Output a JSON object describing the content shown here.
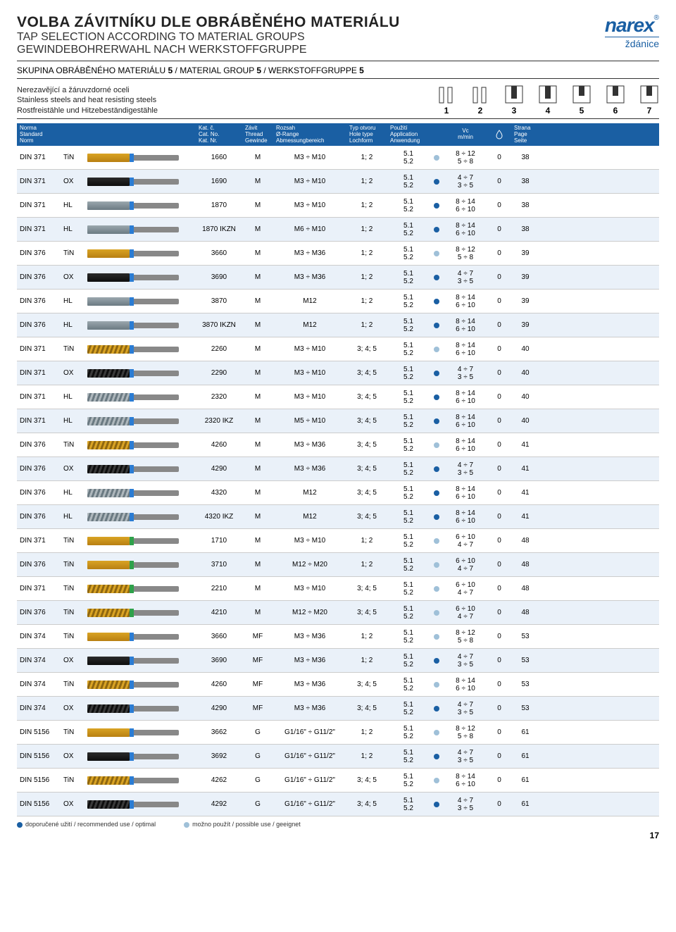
{
  "colors": {
    "brand": "#1a5fa3",
    "row_alt_bg": "#eaf1f9",
    "dot_recommended": "#1a5fa3",
    "dot_possible": "#9fc0d8",
    "ring_blue": "#2b7cd3",
    "ring_green": "#2fa14a",
    "flute_gold": "#d9a324",
    "flute_dark": "#1a1a1a",
    "flute_steel": "#8a969c"
  },
  "header": {
    "title_cz": "VOLBA ZÁVITNÍKU DLE OBRÁBĚNÉHO MATERIÁLU",
    "title_en": "TAP SELECTION ACCORDING TO MATERIAL GROUPS",
    "title_de": "GEWINDEBOHRERWAHL NACH WERKSTOFFGRUPPE",
    "logo_top": "narex",
    "logo_sub": "ždánice"
  },
  "subhead": {
    "cz": "SKUPINA OBRÁBĚNÉHO MATERIÁLU",
    "num": "5",
    "sep1": " / MATERIAL GROUP ",
    "sep2": " / WERKSTOFFGRUPPE "
  },
  "material_box": {
    "line1": "Nerezavějící a žáruvzdorné oceli",
    "line2": "Stainless steels and heat resisting steels",
    "line3": "Rostfreistähle und Hitzebeständigestähle"
  },
  "hole_labels": [
    "1",
    "2",
    "3",
    "4",
    "5",
    "6",
    "7"
  ],
  "columns": {
    "norm": "Norma\nStandard\nNorm",
    "cat": "Kat. č.\nCat. No.\nKat. Nr.",
    "thread": "Závit\nThread\nGewinde",
    "range": "Rozsah\nØ-Range\nAbmessungbereich",
    "hole": "Typ otvoru\nHole type\nLochform",
    "app": "Použití\nApplication\nAnwendung",
    "vc": "Vc\nm/min",
    "page": "Strana\nPage\nSeite"
  },
  "legend": {
    "rec": "doporučené užití / recommended use / optimal",
    "pos": "možno použít / possible use / geeignet"
  },
  "page_number": "17",
  "rows": [
    {
      "norm": "DIN 371",
      "coat": "TiN",
      "flute": "gold",
      "spiral": false,
      "ring": "blue",
      "cat": "1660",
      "thr": "M",
      "range": "M3 ÷ M10",
      "hole": "1; 2",
      "app": [
        "5.1",
        "5.2"
      ],
      "dot": "pos",
      "vc": [
        "8 ÷ 12",
        "5 ÷ 8"
      ],
      "lub": "0",
      "page": "38"
    },
    {
      "norm": "DIN 371",
      "coat": "OX",
      "flute": "dark",
      "spiral": false,
      "ring": "blue",
      "cat": "1690",
      "thr": "M",
      "range": "M3 ÷ M10",
      "hole": "1; 2",
      "app": [
        "5.1",
        "5.2"
      ],
      "dot": "rec",
      "vc": [
        "4 ÷ 7",
        "3 ÷ 5"
      ],
      "lub": "0",
      "page": "38"
    },
    {
      "norm": "DIN 371",
      "coat": "HL",
      "flute": "steel",
      "spiral": false,
      "ring": "blue",
      "cat": "1870",
      "thr": "M",
      "range": "M3 ÷ M10",
      "hole": "1; 2",
      "app": [
        "5.1",
        "5.2"
      ],
      "dot": "rec",
      "vc": [
        "8 ÷ 14",
        "6 ÷ 10"
      ],
      "lub": "0",
      "page": "38"
    },
    {
      "norm": "DIN 371",
      "coat": "HL",
      "flute": "steel",
      "spiral": false,
      "ring": "blue",
      "cat": "1870 IKZN",
      "thr": "M",
      "range": "M6 ÷ M10",
      "hole": "1; 2",
      "app": [
        "5.1",
        "5.2"
      ],
      "dot": "rec",
      "vc": [
        "8 ÷ 14",
        "6 ÷ 10"
      ],
      "lub": "0",
      "page": "38"
    },
    {
      "norm": "DIN 376",
      "coat": "TiN",
      "flute": "gold",
      "spiral": false,
      "ring": "blue",
      "cat": "3660",
      "thr": "M",
      "range": "M3 ÷ M36",
      "hole": "1; 2",
      "app": [
        "5.1",
        "5.2"
      ],
      "dot": "pos",
      "vc": [
        "8 ÷ 12",
        "5 ÷ 8"
      ],
      "lub": "0",
      "page": "39"
    },
    {
      "norm": "DIN 376",
      "coat": "OX",
      "flute": "dark",
      "spiral": false,
      "ring": "blue",
      "cat": "3690",
      "thr": "M",
      "range": "M3 ÷ M36",
      "hole": "1; 2",
      "app": [
        "5.1",
        "5.2"
      ],
      "dot": "rec",
      "vc": [
        "4 ÷ 7",
        "3 ÷ 5"
      ],
      "lub": "0",
      "page": "39"
    },
    {
      "norm": "DIN 376",
      "coat": "HL",
      "flute": "steel",
      "spiral": false,
      "ring": "blue",
      "cat": "3870",
      "thr": "M",
      "range": "M12",
      "hole": "1; 2",
      "app": [
        "5.1",
        "5.2"
      ],
      "dot": "rec",
      "vc": [
        "8 ÷ 14",
        "6 ÷ 10"
      ],
      "lub": "0",
      "page": "39"
    },
    {
      "norm": "DIN 376",
      "coat": "HL",
      "flute": "steel",
      "spiral": false,
      "ring": "blue",
      "cat": "3870 IKZN",
      "thr": "M",
      "range": "M12",
      "hole": "1; 2",
      "app": [
        "5.1",
        "5.2"
      ],
      "dot": "rec",
      "vc": [
        "8 ÷ 14",
        "6 ÷ 10"
      ],
      "lub": "0",
      "page": "39"
    },
    {
      "norm": "DIN 371",
      "coat": "TiN",
      "flute": "gold",
      "spiral": true,
      "ring": "blue",
      "cat": "2260",
      "thr": "M",
      "range": "M3 ÷ M10",
      "hole": "3; 4; 5",
      "app": [
        "5.1",
        "5.2"
      ],
      "dot": "pos",
      "vc": [
        "8 ÷ 14",
        "6 ÷ 10"
      ],
      "lub": "0",
      "page": "40"
    },
    {
      "norm": "DIN 371",
      "coat": "OX",
      "flute": "dark",
      "spiral": true,
      "ring": "blue",
      "cat": "2290",
      "thr": "M",
      "range": "M3 ÷ M10",
      "hole": "3; 4; 5",
      "app": [
        "5.1",
        "5.2"
      ],
      "dot": "rec",
      "vc": [
        "4 ÷ 7",
        "3 ÷ 5"
      ],
      "lub": "0",
      "page": "40"
    },
    {
      "norm": "DIN 371",
      "coat": "HL",
      "flute": "steel",
      "spiral": true,
      "ring": "blue",
      "cat": "2320",
      "thr": "M",
      "range": "M3 ÷ M10",
      "hole": "3; 4; 5",
      "app": [
        "5.1",
        "5.2"
      ],
      "dot": "rec",
      "vc": [
        "8 ÷ 14",
        "6 ÷ 10"
      ],
      "lub": "0",
      "page": "40"
    },
    {
      "norm": "DIN 371",
      "coat": "HL",
      "flute": "steel",
      "spiral": true,
      "ring": "blue",
      "cat": "2320 IKZ",
      "thr": "M",
      "range": "M5 ÷ M10",
      "hole": "3; 4; 5",
      "app": [
        "5.1",
        "5.2"
      ],
      "dot": "rec",
      "vc": [
        "8 ÷ 14",
        "6 ÷ 10"
      ],
      "lub": "0",
      "page": "40"
    },
    {
      "norm": "DIN 376",
      "coat": "TiN",
      "flute": "gold",
      "spiral": true,
      "ring": "blue",
      "cat": "4260",
      "thr": "M",
      "range": "M3 ÷ M36",
      "hole": "3; 4; 5",
      "app": [
        "5.1",
        "5.2"
      ],
      "dot": "pos",
      "vc": [
        "8 ÷ 14",
        "6 ÷ 10"
      ],
      "lub": "0",
      "page": "41"
    },
    {
      "norm": "DIN 376",
      "coat": "OX",
      "flute": "dark",
      "spiral": true,
      "ring": "blue",
      "cat": "4290",
      "thr": "M",
      "range": "M3 ÷ M36",
      "hole": "3; 4; 5",
      "app": [
        "5.1",
        "5.2"
      ],
      "dot": "rec",
      "vc": [
        "4 ÷ 7",
        "3 ÷ 5"
      ],
      "lub": "0",
      "page": "41"
    },
    {
      "norm": "DIN 376",
      "coat": "HL",
      "flute": "steel",
      "spiral": true,
      "ring": "blue",
      "cat": "4320",
      "thr": "M",
      "range": "M12",
      "hole": "3; 4; 5",
      "app": [
        "5.1",
        "5.2"
      ],
      "dot": "rec",
      "vc": [
        "8 ÷ 14",
        "6 ÷ 10"
      ],
      "lub": "0",
      "page": "41"
    },
    {
      "norm": "DIN 376",
      "coat": "HL",
      "flute": "steel",
      "spiral": true,
      "ring": "blue",
      "cat": "4320 IKZ",
      "thr": "M",
      "range": "M12",
      "hole": "3; 4; 5",
      "app": [
        "5.1",
        "5.2"
      ],
      "dot": "rec",
      "vc": [
        "8 ÷ 14",
        "6 ÷ 10"
      ],
      "lub": "0",
      "page": "41"
    },
    {
      "norm": "DIN 371",
      "coat": "TiN",
      "flute": "gold",
      "spiral": false,
      "ring": "green",
      "cat": "1710",
      "thr": "M",
      "range": "M3 ÷ M10",
      "hole": "1; 2",
      "app": [
        "5.1",
        "5.2"
      ],
      "dot": "pos",
      "vc": [
        "6 ÷ 10",
        "4 ÷ 7"
      ],
      "lub": "0",
      "page": "48"
    },
    {
      "norm": "DIN 376",
      "coat": "TiN",
      "flute": "gold",
      "spiral": false,
      "ring": "green",
      "cat": "3710",
      "thr": "M",
      "range": "M12 ÷ M20",
      "hole": "1; 2",
      "app": [
        "5.1",
        "5.2"
      ],
      "dot": "pos",
      "vc": [
        "6 ÷ 10",
        "4 ÷ 7"
      ],
      "lub": "0",
      "page": "48"
    },
    {
      "norm": "DIN 371",
      "coat": "TiN",
      "flute": "gold",
      "spiral": true,
      "ring": "green",
      "cat": "2210",
      "thr": "M",
      "range": "M3 ÷ M10",
      "hole": "3; 4; 5",
      "app": [
        "5.1",
        "5.2"
      ],
      "dot": "pos",
      "vc": [
        "6 ÷ 10",
        "4 ÷ 7"
      ],
      "lub": "0",
      "page": "48"
    },
    {
      "norm": "DIN 376",
      "coat": "TiN",
      "flute": "gold",
      "spiral": true,
      "ring": "green",
      "cat": "4210",
      "thr": "M",
      "range": "M12 ÷ M20",
      "hole": "3; 4; 5",
      "app": [
        "5.1",
        "5.2"
      ],
      "dot": "pos",
      "vc": [
        "6 ÷ 10",
        "4 ÷ 7"
      ],
      "lub": "0",
      "page": "48"
    },
    {
      "norm": "DIN 374",
      "coat": "TiN",
      "flute": "gold",
      "spiral": false,
      "ring": "blue",
      "cat": "3660",
      "thr": "MF",
      "range": "M3 ÷ M36",
      "hole": "1; 2",
      "app": [
        "5.1",
        "5.2"
      ],
      "dot": "pos",
      "vc": [
        "8 ÷ 12",
        "5 ÷ 8"
      ],
      "lub": "0",
      "page": "53"
    },
    {
      "norm": "DIN 374",
      "coat": "OX",
      "flute": "dark",
      "spiral": false,
      "ring": "blue",
      "cat": "3690",
      "thr": "MF",
      "range": "M3 ÷ M36",
      "hole": "1; 2",
      "app": [
        "5.1",
        "5.2"
      ],
      "dot": "rec",
      "vc": [
        "4 ÷ 7",
        "3 ÷ 5"
      ],
      "lub": "0",
      "page": "53"
    },
    {
      "norm": "DIN 374",
      "coat": "TiN",
      "flute": "gold",
      "spiral": true,
      "ring": "blue",
      "cat": "4260",
      "thr": "MF",
      "range": "M3 ÷ M36",
      "hole": "3; 4; 5",
      "app": [
        "5.1",
        "5.2"
      ],
      "dot": "pos",
      "vc": [
        "8 ÷ 14",
        "6 ÷ 10"
      ],
      "lub": "0",
      "page": "53"
    },
    {
      "norm": "DIN 374",
      "coat": "OX",
      "flute": "dark",
      "spiral": true,
      "ring": "blue",
      "cat": "4290",
      "thr": "MF",
      "range": "M3 ÷ M36",
      "hole": "3; 4; 5",
      "app": [
        "5.1",
        "5.2"
      ],
      "dot": "rec",
      "vc": [
        "4 ÷ 7",
        "3 ÷ 5"
      ],
      "lub": "0",
      "page": "53"
    },
    {
      "norm": "DIN 5156",
      "coat": "TiN",
      "flute": "gold",
      "spiral": false,
      "ring": "blue",
      "cat": "3662",
      "thr": "G",
      "range": "G1/16\" ÷ G11/2\"",
      "hole": "1; 2",
      "app": [
        "5.1",
        "5.2"
      ],
      "dot": "pos",
      "vc": [
        "8 ÷ 12",
        "5 ÷ 8"
      ],
      "lub": "0",
      "page": "61"
    },
    {
      "norm": "DIN 5156",
      "coat": "OX",
      "flute": "dark",
      "spiral": false,
      "ring": "blue",
      "cat": "3692",
      "thr": "G",
      "range": "G1/16\" ÷ G11/2\"",
      "hole": "1; 2",
      "app": [
        "5.1",
        "5.2"
      ],
      "dot": "rec",
      "vc": [
        "4 ÷ 7",
        "3 ÷ 5"
      ],
      "lub": "0",
      "page": "61"
    },
    {
      "norm": "DIN 5156",
      "coat": "TiN",
      "flute": "gold",
      "spiral": true,
      "ring": "blue",
      "cat": "4262",
      "thr": "G",
      "range": "G1/16\" ÷ G11/2\"",
      "hole": "3; 4; 5",
      "app": [
        "5.1",
        "5.2"
      ],
      "dot": "pos",
      "vc": [
        "8 ÷ 14",
        "6 ÷ 10"
      ],
      "lub": "0",
      "page": "61"
    },
    {
      "norm": "DIN 5156",
      "coat": "OX",
      "flute": "dark",
      "spiral": true,
      "ring": "blue",
      "cat": "4292",
      "thr": "G",
      "range": "G1/16\" ÷ G11/2\"",
      "hole": "3; 4; 5",
      "app": [
        "5.1",
        "5.2"
      ],
      "dot": "rec",
      "vc": [
        "4 ÷ 7",
        "3 ÷ 5"
      ],
      "lub": "0",
      "page": "61"
    }
  ]
}
